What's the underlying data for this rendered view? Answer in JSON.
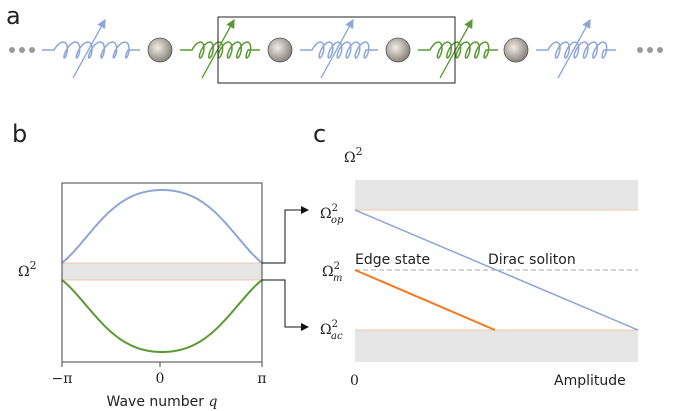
{
  "panel_a": {
    "label": "a"
  },
  "panel_b": {
    "label": "b",
    "y_label": {
      "base": "Ω",
      "sup": "2"
    },
    "x_ticks": [
      "−π",
      "0",
      "π"
    ],
    "x_label": {
      "text": "Wave number",
      "var": "q"
    }
  },
  "panel_c": {
    "label": "c",
    "y_label": {
      "base": "Ω",
      "sup": "2"
    },
    "levels": [
      {
        "base": "Ω",
        "sup": "2",
        "sub": "op"
      },
      {
        "base": "Ω",
        "sup": "2",
        "sub": "m"
      },
      {
        "base": "Ω",
        "sup": "2",
        "sub": "ac"
      }
    ],
    "annotations": [
      "Edge state",
      "Dirac soliton"
    ],
    "x_origin": "0",
    "x_label": "Amplitude"
  }
}
